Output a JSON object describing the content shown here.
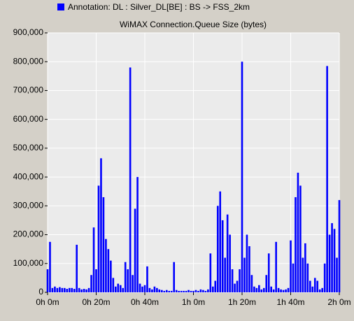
{
  "chart_data": {
    "type": "bar",
    "legend_label": "Annotation: DL : Silver_DL[BE] : BS -> FSS_2km",
    "title": "WiMAX Connection.Queue Size (bytes)",
    "series": [
      {
        "name": "Annotation: DL : Silver_DL[BE] : BS -> FSS_2km",
        "color": "#0000ff",
        "x": [
          0,
          1,
          2,
          3,
          4,
          5,
          6,
          7,
          8,
          9,
          10,
          11,
          12,
          13,
          14,
          15,
          16,
          17,
          18,
          19,
          20,
          21,
          22,
          23,
          24,
          25,
          26,
          27,
          28,
          29,
          30,
          31,
          32,
          33,
          34,
          35,
          36,
          37,
          38,
          39,
          40,
          41,
          42,
          43,
          44,
          45,
          46,
          47,
          48,
          49,
          50,
          51,
          52,
          53,
          54,
          55,
          56,
          57,
          58,
          59,
          60,
          61,
          62,
          63,
          64,
          65,
          66,
          67,
          68,
          69,
          70,
          71,
          72,
          73,
          74,
          75,
          76,
          77,
          78,
          79,
          80,
          81,
          82,
          83,
          84,
          85,
          86,
          87,
          88,
          89,
          90,
          91,
          92,
          93,
          94,
          95,
          96,
          97,
          98,
          99,
          100,
          101,
          102,
          103,
          104,
          105,
          106,
          107,
          108,
          109,
          110,
          111,
          112,
          113,
          114,
          115,
          116,
          117,
          118,
          119,
          120
        ],
        "values": [
          80000,
          175000,
          15000,
          20000,
          15000,
          18000,
          15000,
          15000,
          12000,
          15000,
          15000,
          12000,
          165000,
          15000,
          10000,
          12000,
          10000,
          15000,
          60000,
          225000,
          80000,
          370000,
          465000,
          330000,
          185000,
          150000,
          110000,
          50000,
          20000,
          30000,
          25000,
          15000,
          105000,
          80000,
          780000,
          60000,
          290000,
          400000,
          30000,
          20000,
          25000,
          90000,
          15000,
          10000,
          20000,
          15000,
          10000,
          8000,
          5000,
          8000,
          5000,
          5000,
          105000,
          8000,
          5000,
          5000,
          5000,
          5000,
          8000,
          5000,
          5000,
          8000,
          5000,
          10000,
          8000,
          5000,
          10000,
          135000,
          20000,
          40000,
          300000,
          350000,
          250000,
          120000,
          270000,
          200000,
          80000,
          30000,
          40000,
          80000,
          800000,
          120000,
          200000,
          160000,
          60000,
          20000,
          15000,
          25000,
          10000,
          15000,
          60000,
          135000,
          20000,
          10000,
          175000,
          15000,
          10000,
          8000,
          10000,
          15000,
          180000,
          100000,
          330000,
          415000,
          370000,
          120000,
          170000,
          100000,
          40000,
          20000,
          50000,
          40000,
          10000,
          15000,
          100000,
          785000,
          200000,
          240000,
          220000,
          120000,
          320000
        ]
      }
    ],
    "xlim": [
      0,
      120
    ],
    "xticks": [
      {
        "value": 0,
        "label": "0h 0m"
      },
      {
        "value": 20,
        "label": "0h 20m"
      },
      {
        "value": 40,
        "label": "0h 40m"
      },
      {
        "value": 60,
        "label": "1h 0m"
      },
      {
        "value": 80,
        "label": "1h 20m"
      },
      {
        "value": 100,
        "label": "1h 40m"
      },
      {
        "value": 120,
        "label": "2h 0m"
      }
    ],
    "ylim": [
      0,
      900000
    ],
    "yticks": [
      {
        "value": 0,
        "label": "0"
      },
      {
        "value": 100000,
        "label": "100,000"
      },
      {
        "value": 200000,
        "label": "200,000"
      },
      {
        "value": 300000,
        "label": "300,000"
      },
      {
        "value": 400000,
        "label": "400,000"
      },
      {
        "value": 500000,
        "label": "500,000"
      },
      {
        "value": 600000,
        "label": "600,000"
      },
      {
        "value": 700000,
        "label": "700,000"
      },
      {
        "value": 800000,
        "label": "800,000"
      },
      {
        "value": 900000,
        "label": "900,000"
      }
    ],
    "grid": true
  }
}
